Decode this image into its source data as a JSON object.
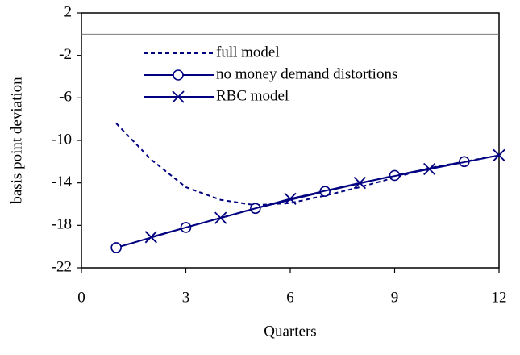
{
  "chart_data": {
    "type": "line",
    "xlabel": "Quarters",
    "ylabel": "basis point deviation",
    "xlim": [
      0,
      12
    ],
    "xticks": [
      0,
      3,
      6,
      9,
      12
    ],
    "ylim": [
      -22,
      2
    ],
    "yticks": [
      2,
      -2,
      -6,
      -10,
      -14,
      -18,
      -22
    ],
    "reference_line": 0,
    "series": [
      {
        "name": "full model",
        "color": "#000080",
        "style": "dashed",
        "marker": "none",
        "x": [
          1,
          2,
          3,
          4,
          5,
          6,
          7,
          8,
          9,
          10,
          11,
          12
        ],
        "values": [
          -8.4,
          -11.8,
          -14.4,
          -15.6,
          -16.1,
          -15.9,
          -15.2,
          -14.4,
          -13.5,
          -12.6,
          -12.0,
          -11.4
        ]
      },
      {
        "name": "no money demand distortions",
        "color": "#000080",
        "style": "solid",
        "marker": "circle",
        "x": [
          1,
          3,
          5,
          7,
          9,
          11
        ],
        "values": [
          -20.1,
          -18.2,
          -16.4,
          -14.8,
          -13.3,
          -12.0
        ]
      },
      {
        "name": "RBC model",
        "color": "#000080",
        "style": "solid",
        "marker": "cross",
        "x": [
          2,
          4,
          6,
          8,
          10,
          12
        ],
        "values": [
          -19.1,
          -17.3,
          -15.5,
          -14.0,
          -12.7,
          -11.4
        ]
      }
    ]
  }
}
